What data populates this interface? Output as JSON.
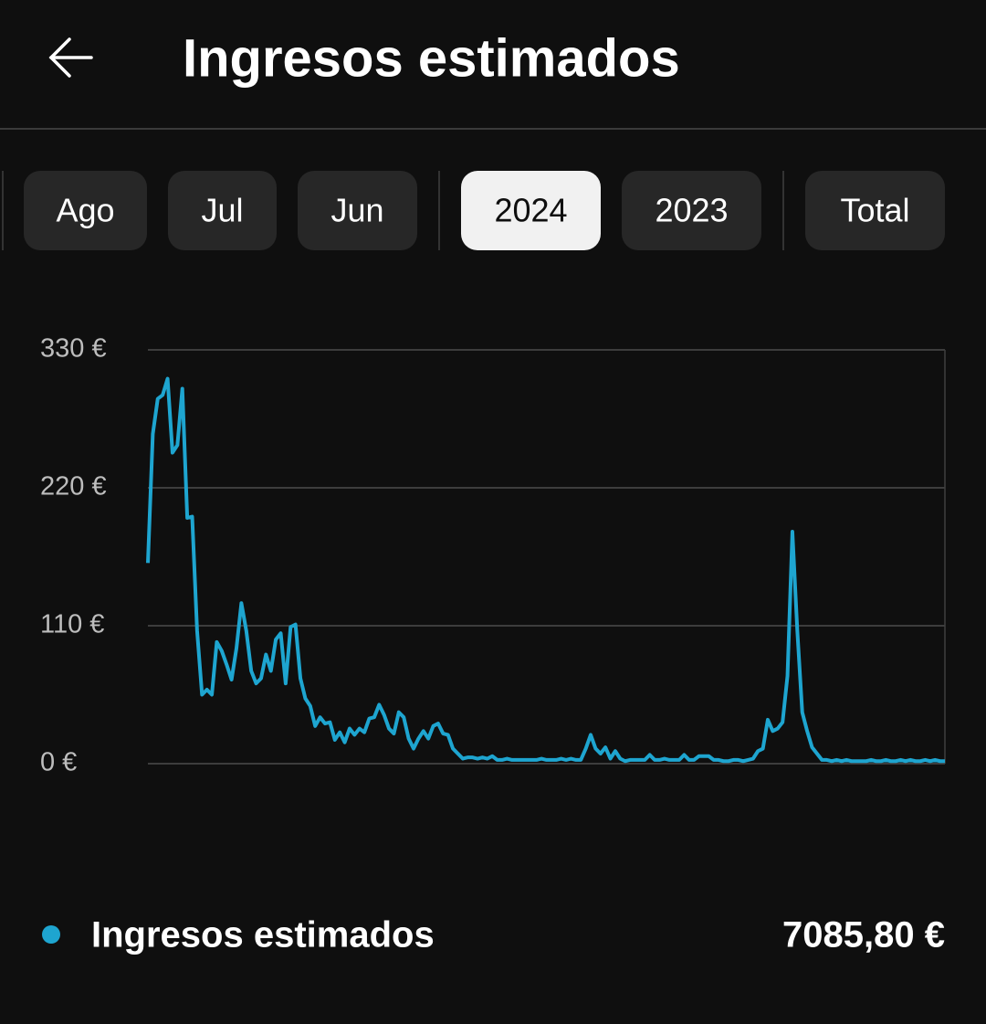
{
  "header": {
    "title": "Ingresos estimados"
  },
  "tabs": [
    {
      "label": "Ago"
    },
    {
      "label": "Jul"
    },
    {
      "label": "Jun"
    },
    {
      "label": "2024",
      "selected": true
    },
    {
      "label": "2023"
    },
    {
      "label": "Total"
    }
  ],
  "chart_data": {
    "type": "line",
    "series": [
      {
        "name": "Ingresos estimados",
        "color": "#1ea5d0",
        "values": [
          160,
          263,
          291,
          294,
          307,
          248,
          254,
          299,
          196,
          197,
          106,
          55,
          59,
          55,
          97,
          90,
          79,
          67,
          92,
          128,
          106,
          74,
          64,
          68,
          87,
          74,
          99,
          104,
          64,
          109,
          111,
          68,
          52,
          46,
          30,
          37,
          32,
          33,
          19,
          25,
          17,
          28,
          23,
          28,
          25,
          36,
          37,
          47,
          39,
          28,
          24,
          41,
          37,
          20,
          12,
          20,
          26,
          20,
          30,
          32,
          24,
          23,
          12,
          8,
          4,
          5,
          5,
          4,
          5,
          4,
          6,
          3,
          3,
          4,
          3,
          3,
          3,
          3,
          3,
          3,
          4,
          3,
          3,
          3,
          4,
          3,
          4,
          3,
          3,
          12,
          23,
          12,
          8,
          13,
          4,
          10,
          4,
          2,
          3,
          3,
          3,
          3,
          7,
          3,
          3,
          4,
          3,
          3,
          3,
          7,
          3,
          3,
          6,
          6,
          6,
          3,
          3,
          2,
          2,
          3,
          3,
          2,
          3,
          4,
          10,
          12,
          35,
          26,
          28,
          33,
          70,
          185,
          106,
          41,
          26,
          13,
          8,
          3,
          3,
          2,
          3,
          2,
          3,
          2,
          2,
          2,
          2,
          3,
          2,
          2,
          3,
          2,
          2,
          3,
          2,
          3,
          2,
          2,
          3,
          2,
          3,
          2,
          2
        ]
      }
    ],
    "ylim": [
      0,
      330
    ],
    "yticks": [
      {
        "value": 0,
        "label": "0 €"
      },
      {
        "value": 110,
        "label": "110 €"
      },
      {
        "value": 220,
        "label": "220 €"
      },
      {
        "value": 330,
        "label": "330 €"
      }
    ],
    "grid": true,
    "total": {
      "value": 7085.8,
      "label": "7085,80 €"
    }
  }
}
